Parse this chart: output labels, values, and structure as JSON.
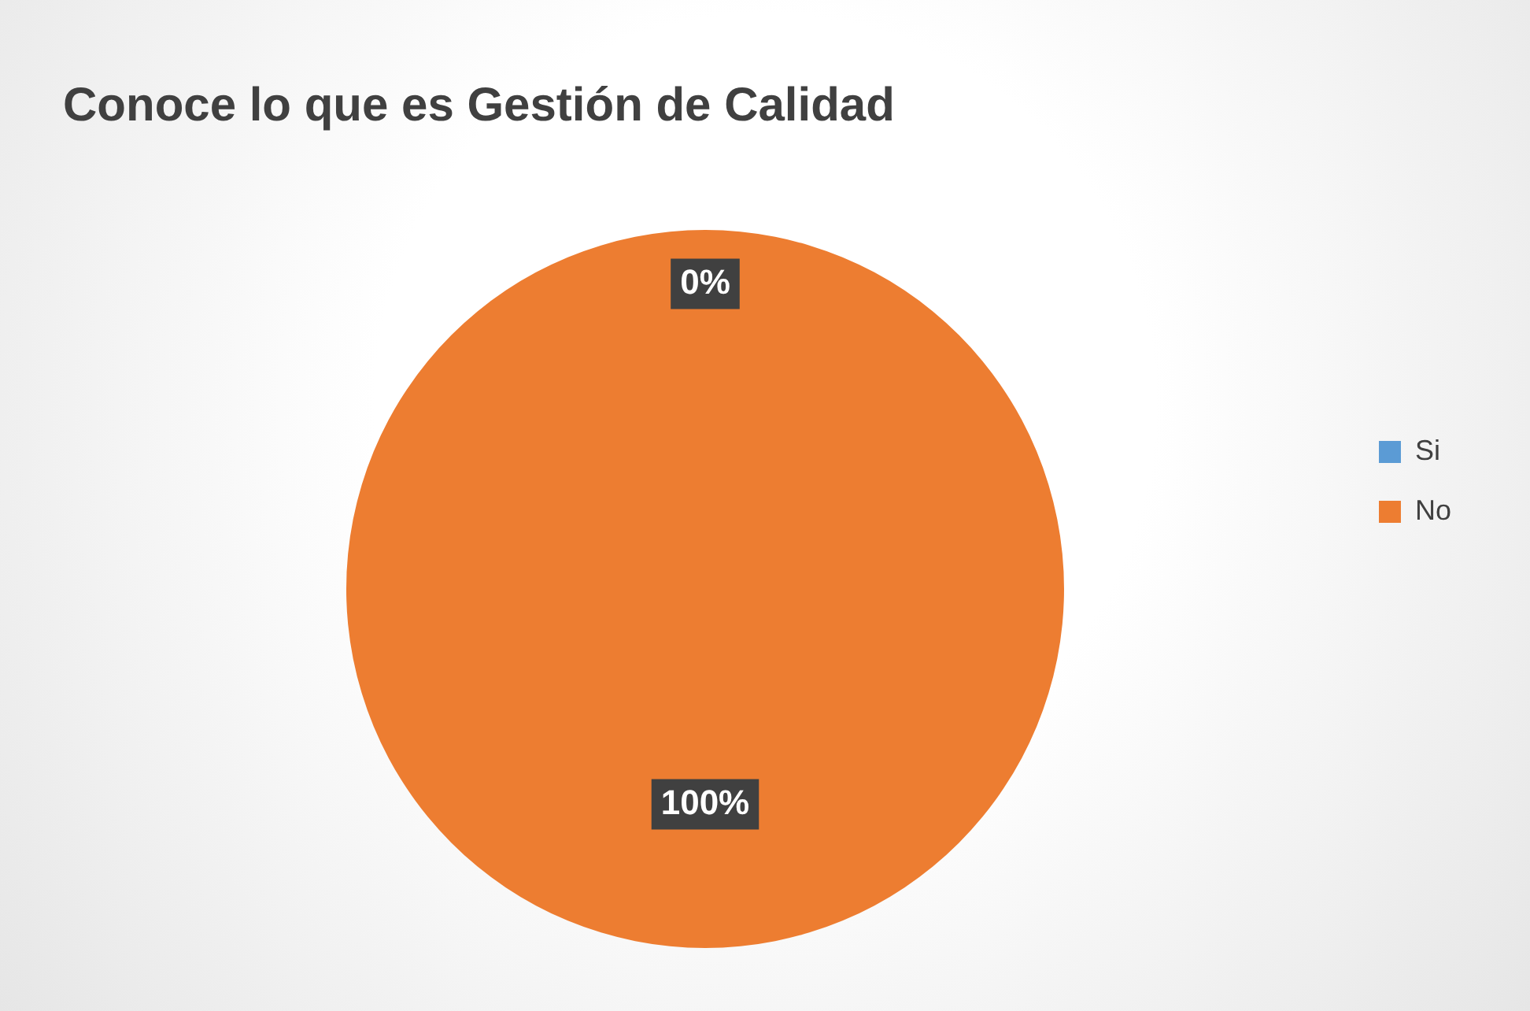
{
  "chart_data": {
    "type": "pie",
    "title": "Conoce lo que es Gestión de Calidad",
    "categories": [
      "Si",
      "No"
    ],
    "values": [
      0,
      100
    ],
    "colors": [
      "#5b9bd5",
      "#ed7d31"
    ],
    "value_labels": [
      "0%",
      "100%"
    ],
    "legend": "right"
  }
}
